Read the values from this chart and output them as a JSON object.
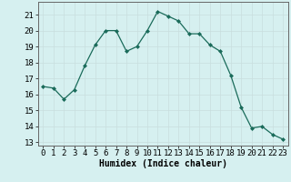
{
  "x": [
    0,
    1,
    2,
    3,
    4,
    5,
    6,
    7,
    8,
    9,
    10,
    11,
    12,
    13,
    14,
    15,
    16,
    17,
    18,
    19,
    20,
    21,
    22,
    23
  ],
  "y": [
    16.5,
    16.4,
    15.7,
    16.3,
    17.8,
    19.1,
    20.0,
    20.0,
    18.7,
    19.0,
    20.0,
    21.2,
    20.9,
    20.6,
    19.8,
    19.8,
    19.1,
    18.7,
    17.2,
    15.2,
    13.9,
    14.0,
    13.5,
    13.2
  ],
  "line_color": "#1a6b5a",
  "marker": "D",
  "marker_size": 2,
  "bg_color": "#d6f0f0",
  "grid_color": "#c8dede",
  "xlabel": "Humidex (Indice chaleur)",
  "ylabel": "",
  "ylim": [
    12.8,
    21.8
  ],
  "xlim": [
    -0.5,
    23.5
  ],
  "yticks": [
    13,
    14,
    15,
    16,
    17,
    18,
    19,
    20,
    21
  ],
  "xticks": [
    0,
    1,
    2,
    3,
    4,
    5,
    6,
    7,
    8,
    9,
    10,
    11,
    12,
    13,
    14,
    15,
    16,
    17,
    18,
    19,
    20,
    21,
    22,
    23
  ],
  "label_fontsize": 7,
  "tick_fontsize": 6.5
}
